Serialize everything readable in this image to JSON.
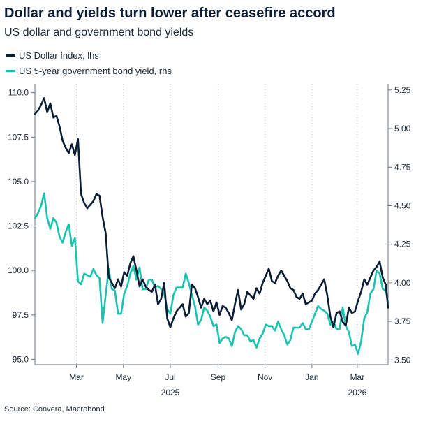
{
  "header": {
    "title": "Dollar and yields turn lower after ceasefire accord",
    "subtitle": "US dollar and government bond yields"
  },
  "footer": {
    "source": "Source: Convera, Macrobond"
  },
  "chart_data": {
    "type": "line",
    "title": "Dollar and yields turn lower after ceasefire accord",
    "subtitle": "US dollar and government bond yields",
    "x_tick_labels": [
      "Mar",
      "May",
      "Jul",
      "Sep",
      "Nov",
      "Jan",
      "Mar"
    ],
    "x_year_labels": [
      {
        "label": "2025",
        "at": "Jul"
      },
      {
        "label": "2026",
        "at": "Mar"
      }
    ],
    "x_range": [
      "2025-01-06",
      "2026-04-10"
    ],
    "left_axis": {
      "ticks": [
        "95.0",
        "97.5",
        "100.0",
        "102.5",
        "105.0",
        "107.5",
        "110.0"
      ],
      "ylim": [
        94.7,
        110.5
      ]
    },
    "right_axis": {
      "ticks": [
        "3.50",
        "3.75",
        "4.00",
        "4.25",
        "4.50",
        "4.75",
        "5.00",
        "5.25"
      ],
      "ylim": [
        3.47,
        5.29
      ]
    },
    "grid": "vertical dotted at month ticks",
    "legend_position": "top-left",
    "series": [
      {
        "name": "US Dollar Index, lhs",
        "axis": "left",
        "color": "#0b1e36",
        "x": [
          "2025-01-06",
          "2025-01-10",
          "2025-01-14",
          "2025-01-18",
          "2025-01-22",
          "2025-01-26",
          "2025-01-30",
          "2025-02-03",
          "2025-02-07",
          "2025-02-11",
          "2025-02-15",
          "2025-02-19",
          "2025-02-23",
          "2025-02-27",
          "2025-03-03",
          "2025-03-07",
          "2025-03-11",
          "2025-03-15",
          "2025-03-19",
          "2025-03-23",
          "2025-03-27",
          "2025-03-31",
          "2025-04-04",
          "2025-04-08",
          "2025-04-12",
          "2025-04-16",
          "2025-04-20",
          "2025-04-24",
          "2025-04-28",
          "2025-05-02",
          "2025-05-06",
          "2025-05-10",
          "2025-05-14",
          "2025-05-18",
          "2025-05-22",
          "2025-05-26",
          "2025-05-30",
          "2025-06-03",
          "2025-06-07",
          "2025-06-11",
          "2025-06-15",
          "2025-06-19",
          "2025-06-23",
          "2025-06-27",
          "2025-07-01",
          "2025-07-05",
          "2025-07-09",
          "2025-07-13",
          "2025-07-17",
          "2025-07-21",
          "2025-07-25",
          "2025-07-29",
          "2025-08-02",
          "2025-08-06",
          "2025-08-10",
          "2025-08-14",
          "2025-08-18",
          "2025-08-22",
          "2025-08-26",
          "2025-08-30",
          "2025-09-03",
          "2025-09-07",
          "2025-09-11",
          "2025-09-15",
          "2025-09-19",
          "2025-09-23",
          "2025-09-27",
          "2025-10-01",
          "2025-10-05",
          "2025-10-09",
          "2025-10-13",
          "2025-10-17",
          "2025-10-21",
          "2025-10-25",
          "2025-10-29",
          "2025-11-02",
          "2025-11-06",
          "2025-11-10",
          "2025-11-14",
          "2025-11-18",
          "2025-11-22",
          "2025-11-26",
          "2025-11-30",
          "2025-12-04",
          "2025-12-08",
          "2025-12-12",
          "2025-12-16",
          "2025-12-20",
          "2025-12-24",
          "2025-12-28",
          "2026-01-01",
          "2026-01-05",
          "2026-01-09",
          "2026-01-13",
          "2026-01-17",
          "2026-01-21",
          "2026-01-25",
          "2026-01-29",
          "2026-02-02",
          "2026-02-06",
          "2026-02-10",
          "2026-02-14",
          "2026-02-18",
          "2026-02-22",
          "2026-02-26",
          "2026-03-02",
          "2026-03-06",
          "2026-03-10",
          "2026-03-14",
          "2026-03-18",
          "2026-03-22",
          "2026-03-26",
          "2026-03-30",
          "2026-04-03",
          "2026-04-07",
          "2026-04-10"
        ],
        "values": [
          108.8,
          109.0,
          109.3,
          109.7,
          108.9,
          109.4,
          108.6,
          108.7,
          108.1,
          107.3,
          106.9,
          106.6,
          107.1,
          106.5,
          107.4,
          104.3,
          103.8,
          103.5,
          103.7,
          103.9,
          104.3,
          104.2,
          103.0,
          102.1,
          99.6,
          99.3,
          99.0,
          99.5,
          99.1,
          99.9,
          99.7,
          100.4,
          100.8,
          100.0,
          99.1,
          99.5,
          99.1,
          98.9,
          98.8,
          99.2,
          98.1,
          98.4,
          99.3,
          97.3,
          96.8,
          97.3,
          97.7,
          97.9,
          98.1,
          97.4,
          97.6,
          99.2,
          99.0,
          98.5,
          97.9,
          98.4,
          98.1,
          98.3,
          97.7,
          98.2,
          97.5,
          98.0,
          97.9,
          97.6,
          97.2,
          98.1,
          98.9,
          97.8,
          98.1,
          98.8,
          98.6,
          98.4,
          99.0,
          98.7,
          99.3,
          99.7,
          100.1,
          99.4,
          99.3,
          99.7,
          100.0,
          99.7,
          99.4,
          99.0,
          98.9,
          98.5,
          98.4,
          98.7,
          98.1,
          98.2,
          98.3,
          98.7,
          98.9,
          99.2,
          99.5,
          98.6,
          97.4,
          96.8,
          97.6,
          97.7,
          97.1,
          96.9,
          97.9,
          97.6,
          97.7,
          98.3,
          98.8,
          99.5,
          99.2,
          99.6,
          100.0,
          100.2,
          100.5,
          99.6,
          99.2,
          97.9
        ]
      },
      {
        "name": "US 5-year government bond yield, rhs",
        "axis": "right",
        "color": "#19c3ae",
        "x": [
          "2025-01-06",
          "2025-01-10",
          "2025-01-14",
          "2025-01-18",
          "2025-01-22",
          "2025-01-26",
          "2025-01-30",
          "2025-02-03",
          "2025-02-07",
          "2025-02-11",
          "2025-02-15",
          "2025-02-19",
          "2025-02-23",
          "2025-02-27",
          "2025-03-03",
          "2025-03-07",
          "2025-03-11",
          "2025-03-15",
          "2025-03-19",
          "2025-03-23",
          "2025-03-27",
          "2025-03-31",
          "2025-04-04",
          "2025-04-08",
          "2025-04-12",
          "2025-04-16",
          "2025-04-20",
          "2025-04-24",
          "2025-04-28",
          "2025-05-02",
          "2025-05-06",
          "2025-05-10",
          "2025-05-14",
          "2025-05-18",
          "2025-05-22",
          "2025-05-26",
          "2025-05-30",
          "2025-06-03",
          "2025-06-07",
          "2025-06-11",
          "2025-06-15",
          "2025-06-19",
          "2025-06-23",
          "2025-06-27",
          "2025-07-01",
          "2025-07-05",
          "2025-07-09",
          "2025-07-13",
          "2025-07-17",
          "2025-07-21",
          "2025-07-25",
          "2025-07-29",
          "2025-08-02",
          "2025-08-06",
          "2025-08-10",
          "2025-08-14",
          "2025-08-18",
          "2025-08-22",
          "2025-08-26",
          "2025-08-30",
          "2025-09-03",
          "2025-09-07",
          "2025-09-11",
          "2025-09-15",
          "2025-09-19",
          "2025-09-23",
          "2025-09-27",
          "2025-10-01",
          "2025-10-05",
          "2025-10-09",
          "2025-10-13",
          "2025-10-17",
          "2025-10-21",
          "2025-10-25",
          "2025-10-29",
          "2025-11-02",
          "2025-11-06",
          "2025-11-10",
          "2025-11-14",
          "2025-11-18",
          "2025-11-22",
          "2025-11-26",
          "2025-11-30",
          "2025-12-04",
          "2025-12-08",
          "2025-12-12",
          "2025-12-16",
          "2025-12-20",
          "2025-12-24",
          "2025-12-28",
          "2026-01-01",
          "2026-01-05",
          "2026-01-09",
          "2026-01-13",
          "2026-01-17",
          "2026-01-21",
          "2026-01-25",
          "2026-01-29",
          "2026-02-02",
          "2026-02-06",
          "2026-02-10",
          "2026-02-14",
          "2026-02-18",
          "2026-02-22",
          "2026-02-26",
          "2026-03-02",
          "2026-03-06",
          "2026-03-10",
          "2026-03-14",
          "2026-03-18",
          "2026-03-22",
          "2026-03-26",
          "2026-03-30",
          "2026-04-03",
          "2026-04-07",
          "2026-04-10"
        ],
        "values": [
          4.42,
          4.45,
          4.5,
          4.58,
          4.42,
          4.35,
          4.42,
          4.39,
          4.3,
          4.26,
          4.33,
          4.38,
          4.24,
          4.29,
          4.01,
          3.99,
          4.06,
          4.05,
          4.04,
          4.09,
          4.05,
          4.03,
          3.74,
          3.92,
          4.09,
          3.96,
          3.95,
          3.8,
          3.8,
          3.93,
          3.98,
          4.06,
          4.11,
          4.02,
          4.1,
          3.96,
          3.96,
          4.02,
          4.02,
          3.97,
          3.98,
          3.96,
          3.93,
          3.83,
          3.8,
          3.92,
          3.97,
          3.97,
          3.97,
          4.06,
          4.0,
          3.92,
          3.85,
          3.73,
          3.76,
          3.84,
          3.82,
          3.78,
          3.72,
          3.73,
          3.61,
          3.64,
          3.65,
          3.64,
          3.59,
          3.68,
          3.72,
          3.7,
          3.66,
          3.66,
          3.62,
          3.63,
          3.58,
          3.64,
          3.67,
          3.73,
          3.72,
          3.72,
          3.69,
          3.75,
          3.7,
          3.66,
          3.6,
          3.63,
          3.71,
          3.71,
          3.71,
          3.74,
          3.7,
          3.7,
          3.75,
          3.8,
          3.85,
          3.83,
          3.82,
          3.8,
          3.73,
          3.75,
          3.7,
          3.7,
          3.84,
          3.72,
          3.68,
          3.59,
          3.6,
          3.54,
          3.62,
          3.77,
          3.81,
          3.93,
          3.96,
          4.08,
          4.06,
          3.96,
          3.95,
          3.87
        ]
      }
    ]
  }
}
